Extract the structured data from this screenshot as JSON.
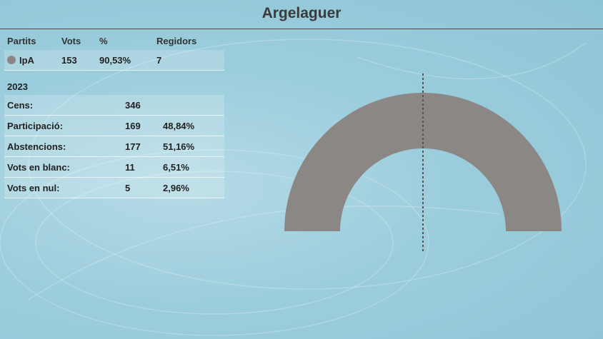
{
  "title": "Argelaguer",
  "table": {
    "headers": [
      "Partits",
      "Vots",
      "%",
      "Regidors"
    ],
    "parties": [
      {
        "name": "IpA",
        "votes": "153",
        "percent": "90,53%",
        "seats": "7",
        "color": "#8a8784"
      }
    ]
  },
  "year": "2023",
  "stats": [
    {
      "label": "Cens:",
      "value": "346",
      "percent": ""
    },
    {
      "label": "Participació:",
      "value": "169",
      "percent": "48,84%"
    },
    {
      "label": "Abstencions:",
      "value": "177",
      "percent": "51,16%"
    },
    {
      "label": "Vots en blanc:",
      "value": "11",
      "percent": "6,51%"
    },
    {
      "label": "Vots en nul:",
      "value": "5",
      "percent": "2,96%"
    }
  ],
  "chart_data": {
    "type": "pie",
    "shape": "half-donut",
    "total_seats": 7,
    "majority_line": true,
    "segments": [
      {
        "label": "IpA",
        "seats": 7,
        "color": "#8a8784"
      }
    ]
  }
}
